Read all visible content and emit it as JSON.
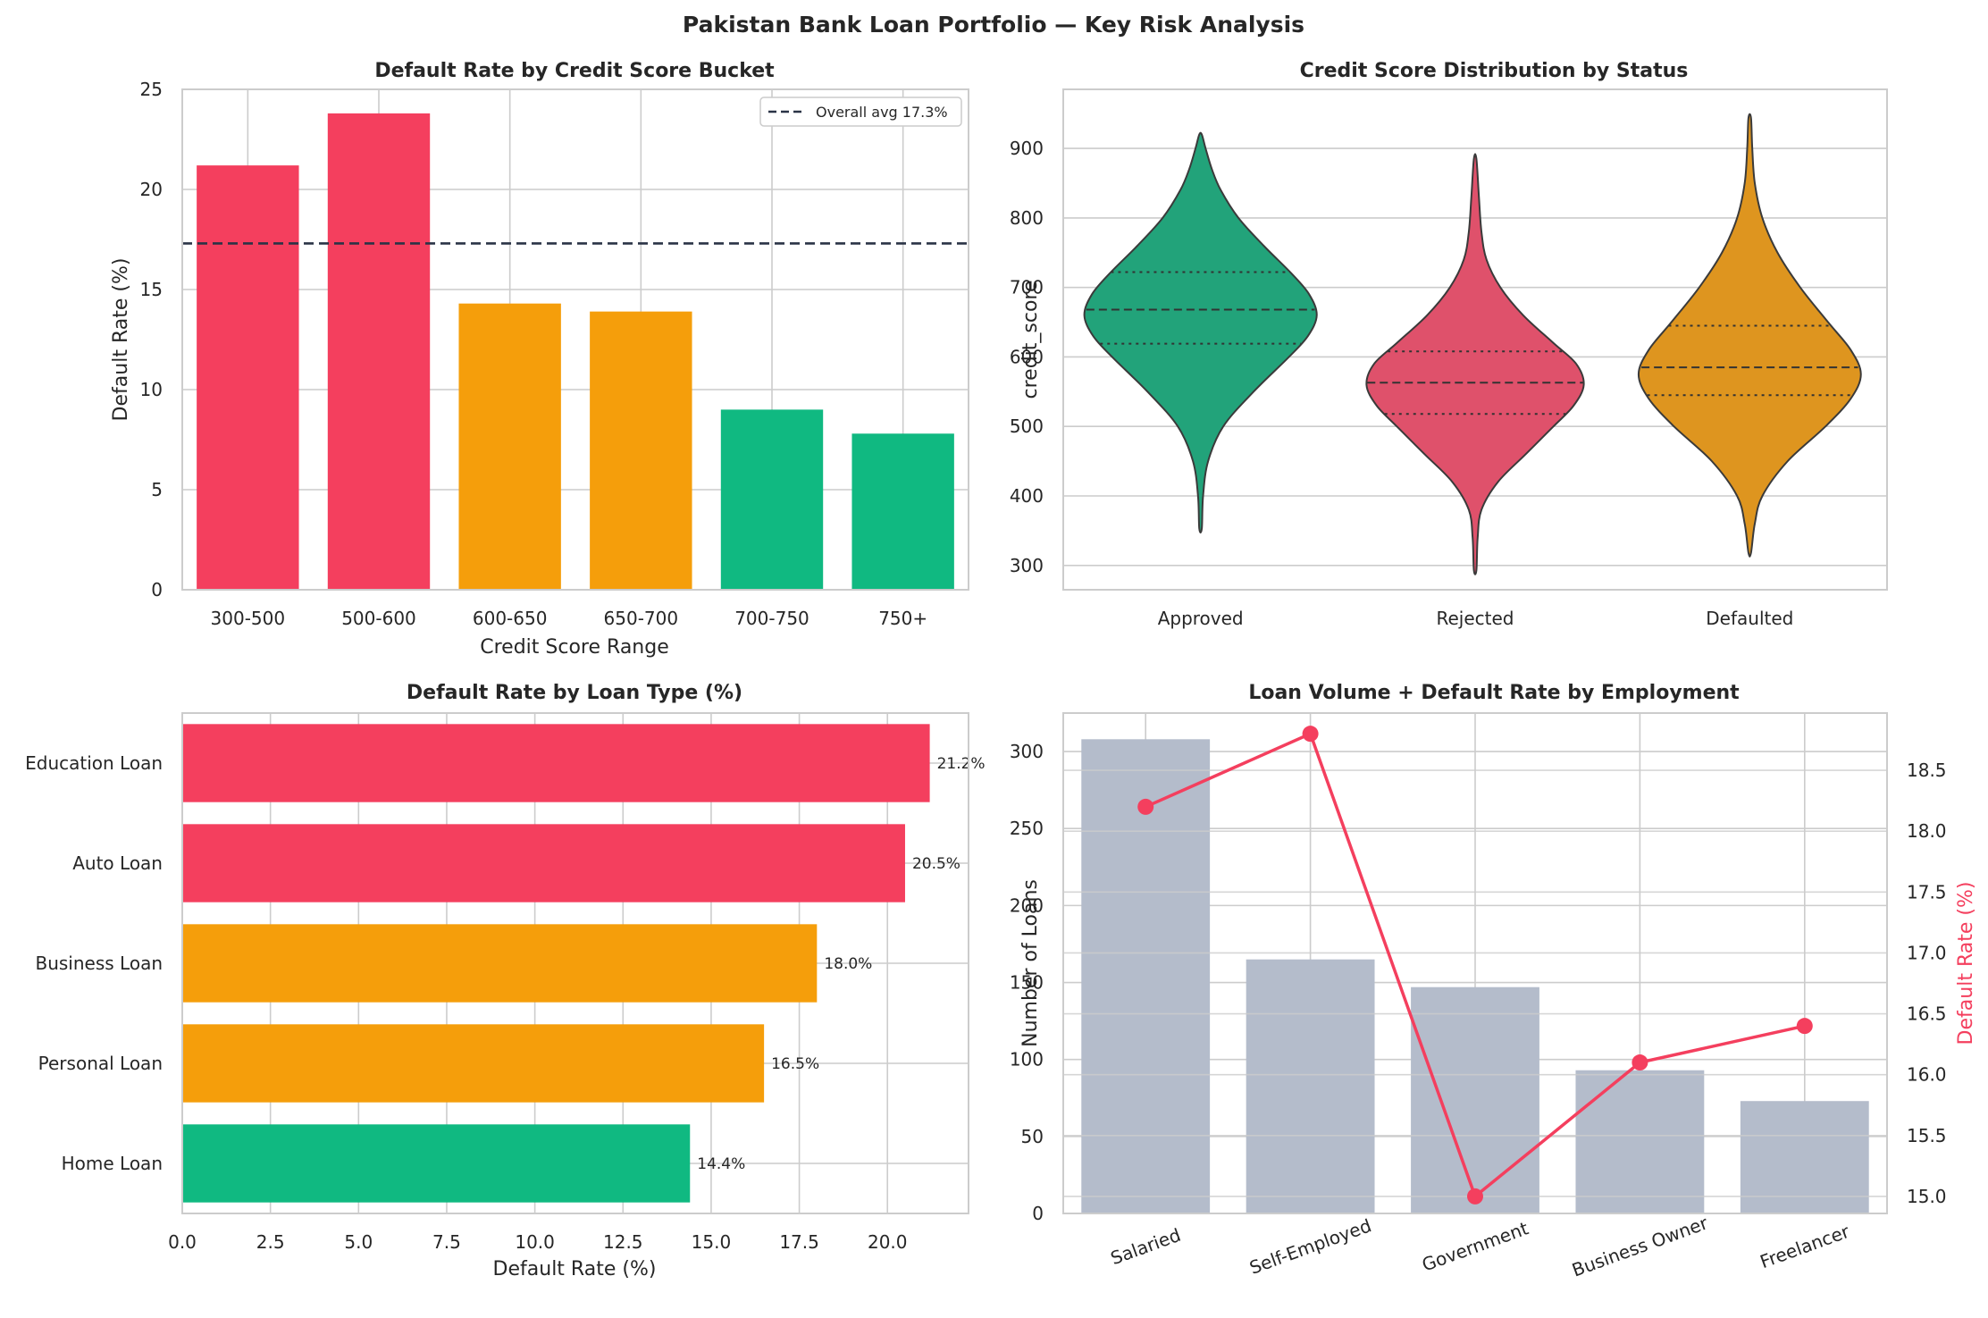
{
  "figure": {
    "suptitle": "Pakistan Bank Loan Portfolio — Key Risk Analysis"
  },
  "colors": {
    "red": "#f43f5e",
    "orange": "#f59e0b",
    "green": "#10b981",
    "violin_approved": "#22a37a",
    "violin_rejected": "#df516b",
    "violin_defaulted": "#de951f",
    "slate": "#b4bccb",
    "dark_line": "#2a3346",
    "grid": "#cccccc"
  },
  "chart_data": [
    {
      "type": "bar",
      "title": "Default Rate by Credit Score Bucket",
      "xlabel": "Credit Score Range",
      "ylabel": "Default Rate (%)",
      "categories": [
        "300-500",
        "500-600",
        "600-650",
        "650-700",
        "700-750",
        "750+"
      ],
      "values": [
        21.2,
        23.8,
        14.3,
        13.9,
        9.0,
        7.8
      ],
      "bar_colors": [
        "red",
        "red",
        "orange",
        "orange",
        "green",
        "green"
      ],
      "ylim": [
        0,
        25
      ],
      "yticks": [
        0,
        5,
        10,
        15,
        20,
        25
      ],
      "reference_line": {
        "value": 17.3,
        "label": "Overall avg 17.3%",
        "style": "dashed"
      },
      "legend": "top-right",
      "grid": true
    },
    {
      "type": "violin",
      "title": "Credit Score Distribution by Status",
      "xlabel": "",
      "ylabel": "credit_score",
      "categories": [
        "Approved",
        "Rejected",
        "Defaulted"
      ],
      "ylim": [
        265,
        985
      ],
      "yticks": [
        300,
        400,
        500,
        600,
        700,
        800,
        900
      ],
      "violins": [
        {
          "name": "Approved",
          "color": "violin_approved",
          "min": 353,
          "max": 920,
          "q1": 619,
          "median": 668,
          "q3": 722,
          "profile": [
            [
              353,
              0.01
            ],
            [
              400,
              0.02
            ],
            [
              450,
              0.06
            ],
            [
              500,
              0.18
            ],
            [
              550,
              0.42
            ],
            [
              600,
              0.7
            ],
            [
              630,
              0.85
            ],
            [
              660,
              0.92
            ],
            [
              690,
              0.86
            ],
            [
              720,
              0.72
            ],
            [
              760,
              0.5
            ],
            [
              800,
              0.3
            ],
            [
              840,
              0.16
            ],
            [
              870,
              0.09
            ],
            [
              900,
              0.04
            ],
            [
              920,
              0.01
            ]
          ]
        },
        {
          "name": "Rejected",
          "color": "violin_rejected",
          "min": 293,
          "max": 885,
          "q1": 518,
          "median": 563,
          "q3": 608,
          "profile": [
            [
              293,
              0.01
            ],
            [
              340,
              0.02
            ],
            [
              380,
              0.05
            ],
            [
              420,
              0.18
            ],
            [
              460,
              0.4
            ],
            [
              500,
              0.62
            ],
            [
              530,
              0.78
            ],
            [
              560,
              0.86
            ],
            [
              590,
              0.8
            ],
            [
              620,
              0.62
            ],
            [
              660,
              0.38
            ],
            [
              700,
              0.2
            ],
            [
              740,
              0.09
            ],
            [
              780,
              0.05
            ],
            [
              830,
              0.03
            ],
            [
              885,
              0.01
            ]
          ]
        },
        {
          "name": "Defaulted",
          "color": "violin_defaulted",
          "min": 318,
          "max": 944,
          "q1": 545,
          "median": 585,
          "q3": 645,
          "profile": [
            [
              318,
              0.01
            ],
            [
              360,
              0.04
            ],
            [
              400,
              0.1
            ],
            [
              450,
              0.3
            ],
            [
              500,
              0.6
            ],
            [
              540,
              0.8
            ],
            [
              575,
              0.88
            ],
            [
              610,
              0.8
            ],
            [
              650,
              0.62
            ],
            [
              700,
              0.4
            ],
            [
              750,
              0.22
            ],
            [
              800,
              0.1
            ],
            [
              850,
              0.04
            ],
            [
              900,
              0.02
            ],
            [
              944,
              0.01
            ]
          ]
        }
      ],
      "grid": true
    },
    {
      "type": "barh",
      "title": "Default Rate by Loan Type (%)",
      "xlabel": "Default Rate (%)",
      "ylabel": "",
      "categories": [
        "Education Loan",
        "Auto Loan",
        "Business Loan",
        "Personal Loan",
        "Home Loan"
      ],
      "values": [
        21.2,
        20.5,
        18.0,
        16.5,
        14.4
      ],
      "data_labels": [
        "21.2%",
        "20.5%",
        "18.0%",
        "16.5%",
        "14.4%"
      ],
      "bar_colors": [
        "red",
        "red",
        "orange",
        "orange",
        "green"
      ],
      "xlim": [
        0,
        22.3
      ],
      "xticks": [
        "0.0",
        "2.5",
        "5.0",
        "7.5",
        "10.0",
        "12.5",
        "15.0",
        "17.5",
        "20.0"
      ],
      "grid": true
    },
    {
      "type": "bar+line",
      "title": "Loan Volume + Default Rate by Employment",
      "xlabel": "",
      "ylabel": "Number of Loans",
      "y2label": "Default Rate (%)",
      "categories": [
        "Salaried",
        "Self-Employed",
        "Government",
        "Business Owner",
        "Freelancer"
      ],
      "series": [
        {
          "name": "Number of Loans",
          "kind": "bar",
          "axis": "left",
          "values": [
            308,
            165,
            147,
            93,
            73
          ]
        },
        {
          "name": "Default Rate (%)",
          "kind": "line",
          "axis": "right",
          "values": [
            18.2,
            18.8,
            15.0,
            16.1,
            16.4
          ]
        }
      ],
      "ylim": [
        0,
        325
      ],
      "yticks": [
        0,
        50,
        100,
        150,
        200,
        250,
        300
      ],
      "y2lim": [
        14.86,
        18.97
      ],
      "y2ticks": [
        "15.0",
        "15.5",
        "16.0",
        "16.5",
        "17.0",
        "17.5",
        "18.0",
        "18.5"
      ],
      "grid": true
    }
  ]
}
